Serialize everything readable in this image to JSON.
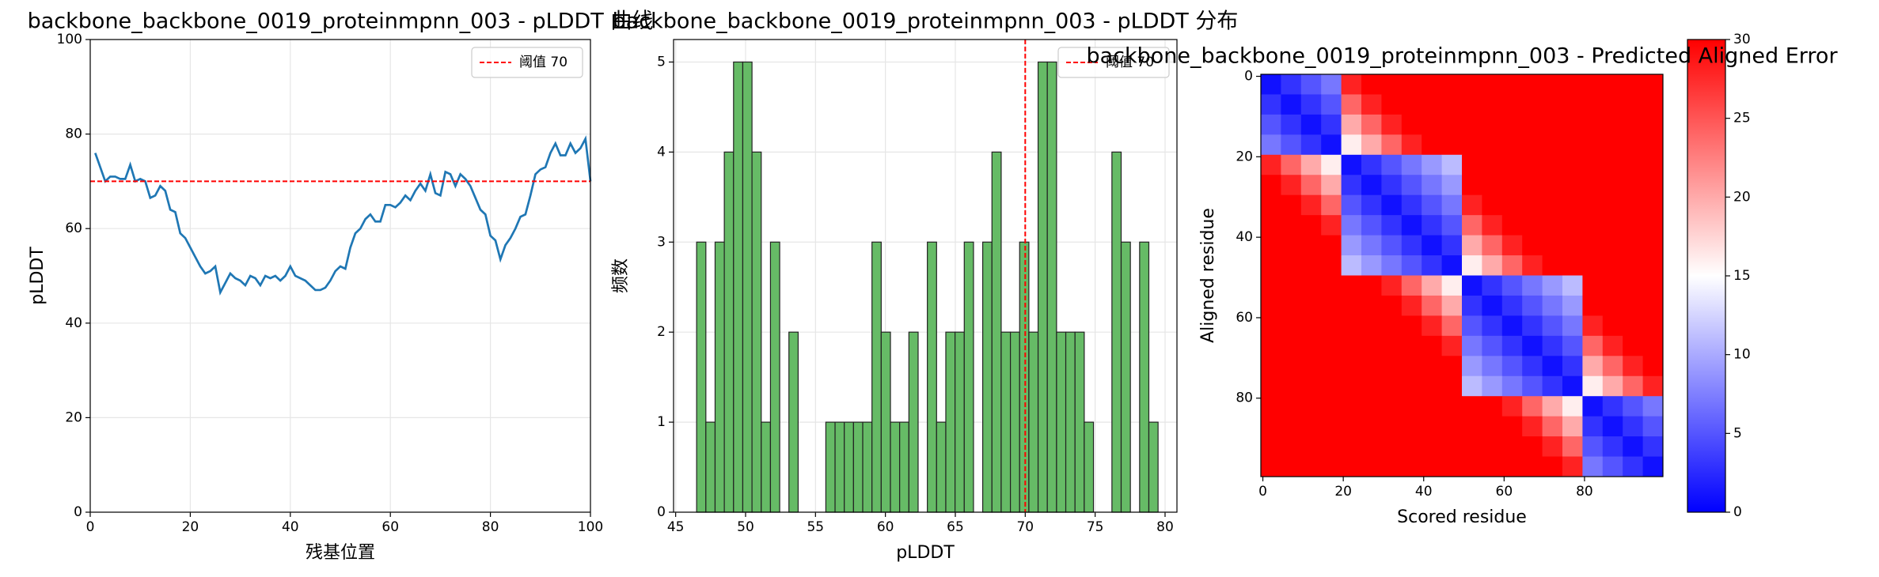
{
  "chart_data": [
    {
      "type": "line",
      "title": "backbone_backbone_0019_proteinmpnn_003 - pLDDT 曲线",
      "xlabel": "残基位置",
      "ylabel": "pLDDT",
      "x": [
        1,
        2,
        3,
        4,
        5,
        6,
        7,
        8,
        9,
        10,
        11,
        12,
        13,
        14,
        15,
        16,
        17,
        18,
        19,
        20,
        21,
        22,
        23,
        24,
        25,
        26,
        27,
        28,
        29,
        30,
        31,
        32,
        33,
        34,
        35,
        36,
        37,
        38,
        39,
        40,
        41,
        42,
        43,
        44,
        45,
        46,
        47,
        48,
        49,
        50,
        51,
        52,
        53,
        54,
        55,
        56,
        57,
        58,
        59,
        60,
        61,
        62,
        63,
        64,
        65,
        66,
        67,
        68,
        69,
        70,
        71,
        72,
        73,
        74,
        75,
        76,
        77,
        78,
        79,
        80,
        81,
        82,
        83,
        84,
        85,
        86,
        87,
        88,
        89,
        90,
        91,
        92,
        93,
        94,
        95,
        96,
        97,
        98,
        99,
        100
      ],
      "values": [
        76,
        73,
        70,
        71,
        71,
        70.5,
        70.5,
        73.5,
        70,
        70.5,
        70,
        66.5,
        67,
        69,
        68,
        64,
        63.5,
        59,
        58,
        56,
        54,
        52,
        50.5,
        51,
        52,
        46.5,
        48.5,
        50.5,
        49.5,
        49,
        48,
        50,
        49.5,
        48,
        50,
        49.5,
        50,
        49,
        50,
        52,
        50,
        49.5,
        49,
        48,
        47,
        47,
        47.5,
        49,
        51,
        52,
        51.5,
        56,
        59,
        60,
        62,
        63,
        61.5,
        61.5,
        65,
        65,
        64.5,
        65.5,
        67,
        66,
        68,
        69.5,
        68,
        71.5,
        67.5,
        67,
        72,
        71.5,
        69,
        71.5,
        70.5,
        69,
        66.5,
        64,
        63,
        58.5,
        57.5,
        53.5,
        56.5,
        58,
        60,
        62.5,
        63,
        67,
        71.5,
        72.5,
        73,
        76,
        78,
        75.5,
        75.5,
        78,
        76,
        77,
        79,
        70
      ],
      "color": "#1f77b4",
      "threshold": {
        "value": 70,
        "label": "阈值 70",
        "color": "#ff0000"
      },
      "xlim": [
        0,
        100
      ],
      "xticks": [
        0,
        20,
        40,
        60,
        80,
        100
      ],
      "ylim": [
        0,
        100
      ],
      "yticks": [
        0,
        20,
        40,
        60,
        80,
        100
      ],
      "grid": true,
      "legend": "upper right"
    },
    {
      "type": "histogram",
      "title": "backbone_backbone_0019_proteinmpnn_003 - pLDDT 分布",
      "xlabel": "pLDDT",
      "ylabel": "频数",
      "bins": [
        46.5,
        47.16,
        47.82,
        48.48,
        49.14,
        49.8,
        50.46,
        51.12,
        51.78,
        52.44,
        53.1,
        53.76,
        54.42,
        55.08,
        55.74,
        56.4,
        57.06,
        57.72,
        58.38,
        59.04,
        59.7,
        60.36,
        61.02,
        61.68,
        62.34,
        63,
        63.66,
        64.32,
        64.98,
        65.64,
        66.3,
        66.96,
        67.62,
        68.28,
        68.94,
        69.6,
        70.26,
        70.92,
        71.58,
        72.24,
        72.9,
        73.56,
        74.22,
        74.88,
        75.54,
        76.2,
        76.86,
        77.52,
        78.18,
        78.84,
        79.5
      ],
      "values": [
        3,
        1,
        3,
        4,
        5,
        5,
        4,
        1,
        3,
        0,
        2,
        0,
        0,
        0,
        1,
        1,
        1,
        1,
        1,
        3,
        2,
        1,
        1,
        2,
        0,
        3,
        1,
        2,
        2,
        3,
        0,
        3,
        4,
        2,
        2,
        3,
        2,
        5,
        5,
        2,
        2,
        2,
        1,
        0,
        0,
        4,
        3,
        0,
        3,
        1
      ],
      "color": "#66bb66",
      "threshold": {
        "value": 70,
        "label": "阈值 70",
        "color": "#ff0000"
      },
      "xlim": [
        44.85,
        80.85
      ],
      "xticks": [
        45,
        50,
        55,
        60,
        65,
        70,
        75,
        80
      ],
      "ylim": [
        0,
        5.25
      ],
      "yticks": [
        0,
        1,
        2,
        3,
        4,
        5
      ],
      "grid": true,
      "legend": "upper right"
    },
    {
      "type": "heatmap",
      "title": "backbone_backbone_0019_proteinmpnn_003 - Predicted Aligned Error",
      "xlabel": "Scored residue",
      "ylabel": "Aligned residue",
      "cmap": "bwr",
      "clim": [
        0,
        30
      ],
      "cticks": [
        0,
        5,
        10,
        15,
        20,
        25,
        30
      ],
      "xlim": [
        -0.5,
        99.5
      ],
      "xticks": [
        0,
        20,
        40,
        60,
        80
      ],
      "ylim": [
        99.5,
        -0.5
      ],
      "yticks": [
        0,
        20,
        40,
        60,
        80
      ],
      "z": [
        [
          1,
          3,
          5,
          7,
          28,
          30,
          30,
          30,
          30,
          30,
          30,
          30,
          30,
          30,
          30,
          30,
          30,
          30,
          30,
          30
        ],
        [
          3,
          1,
          3,
          5,
          24,
          28,
          30,
          30,
          30,
          30,
          30,
          30,
          30,
          30,
          30,
          30,
          30,
          30,
          30,
          30
        ],
        [
          5,
          3,
          1,
          3,
          20,
          24,
          28,
          30,
          30,
          30,
          30,
          30,
          30,
          30,
          30,
          30,
          30,
          30,
          30,
          30
        ],
        [
          7,
          5,
          3,
          1,
          16,
          20,
          24,
          28,
          30,
          30,
          30,
          30,
          30,
          30,
          30,
          30,
          30,
          30,
          30,
          30
        ],
        [
          28,
          24,
          20,
          16,
          1,
          3,
          5,
          7,
          9,
          11,
          30,
          30,
          30,
          30,
          30,
          30,
          30,
          30,
          30,
          30
        ],
        [
          30,
          28,
          24,
          20,
          3,
          1,
          3,
          5,
          7,
          9,
          30,
          30,
          30,
          30,
          30,
          30,
          30,
          30,
          30,
          30
        ],
        [
          30,
          30,
          28,
          24,
          5,
          3,
          1,
          3,
          5,
          7,
          28,
          30,
          30,
          30,
          30,
          30,
          30,
          30,
          30,
          30
        ],
        [
          30,
          30,
          30,
          28,
          7,
          5,
          3,
          1,
          3,
          5,
          24,
          28,
          30,
          30,
          30,
          30,
          30,
          30,
          30,
          30
        ],
        [
          30,
          30,
          30,
          30,
          9,
          7,
          5,
          3,
          1,
          3,
          20,
          24,
          28,
          30,
          30,
          30,
          30,
          30,
          30,
          30
        ],
        [
          30,
          30,
          30,
          30,
          11,
          9,
          7,
          5,
          3,
          1,
          16,
          20,
          24,
          28,
          30,
          30,
          30,
          30,
          30,
          30
        ],
        [
          30,
          30,
          30,
          30,
          30,
          30,
          28,
          24,
          20,
          16,
          1,
          3,
          5,
          7,
          9,
          11,
          30,
          30,
          30,
          30
        ],
        [
          30,
          30,
          30,
          30,
          30,
          30,
          30,
          28,
          24,
          20,
          3,
          1,
          3,
          5,
          7,
          9,
          30,
          30,
          30,
          30
        ],
        [
          30,
          30,
          30,
          30,
          30,
          30,
          30,
          30,
          28,
          24,
          5,
          3,
          1,
          3,
          5,
          7,
          28,
          30,
          30,
          30
        ],
        [
          30,
          30,
          30,
          30,
          30,
          30,
          30,
          30,
          30,
          28,
          7,
          5,
          3,
          1,
          3,
          5,
          24,
          28,
          30,
          30
        ],
        [
          30,
          30,
          30,
          30,
          30,
          30,
          30,
          30,
          30,
          30,
          9,
          7,
          5,
          3,
          1,
          3,
          20,
          24,
          28,
          30
        ],
        [
          30,
          30,
          30,
          30,
          30,
          30,
          30,
          30,
          30,
          30,
          11,
          9,
          7,
          5,
          3,
          1,
          16,
          20,
          24,
          28
        ],
        [
          30,
          30,
          30,
          30,
          30,
          30,
          30,
          30,
          30,
          30,
          30,
          30,
          28,
          24,
          20,
          16,
          1,
          3,
          5,
          7
        ],
        [
          30,
          30,
          30,
          30,
          30,
          30,
          30,
          30,
          30,
          30,
          30,
          30,
          30,
          28,
          24,
          20,
          3,
          1,
          3,
          5
        ],
        [
          30,
          30,
          30,
          30,
          30,
          30,
          30,
          30,
          30,
          30,
          30,
          30,
          30,
          30,
          28,
          24,
          5,
          3,
          1,
          3
        ],
        [
          30,
          30,
          30,
          30,
          30,
          30,
          30,
          30,
          30,
          30,
          30,
          30,
          30,
          30,
          30,
          28,
          7,
          5,
          3,
          1
        ]
      ]
    }
  ]
}
